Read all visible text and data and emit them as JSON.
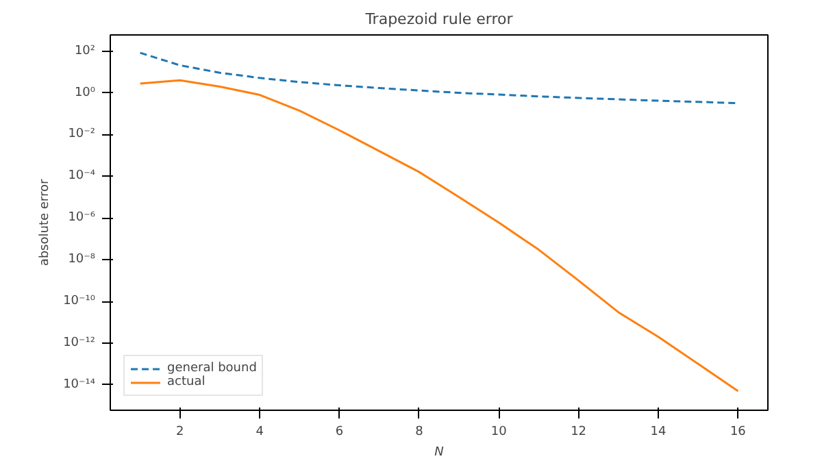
{
  "chart_data": {
    "type": "line",
    "title": "Trapezoid rule error",
    "xlabel": "N",
    "ylabel": "absolute error",
    "x": [
      1,
      2,
      3,
      4,
      5,
      6,
      7,
      8,
      9,
      10,
      11,
      12,
      13,
      14,
      15,
      16
    ],
    "series": [
      {
        "name": "general bound",
        "color": "#1f77b4",
        "line_style": "dashed",
        "values": [
          83,
          21,
          9.2,
          5.2,
          3.3,
          2.3,
          1.7,
          1.3,
          1.0,
          0.83,
          0.68,
          0.57,
          0.49,
          0.42,
          0.37,
          0.32
        ]
      },
      {
        "name": "actual",
        "color": "#ff7f0e",
        "line_style": "solid",
        "values": [
          2.8,
          4,
          2,
          0.8,
          0.14,
          0.016,
          0.0016,
          0.00016,
          1e-05,
          6e-07,
          3e-08,
          1e-09,
          3e-11,
          2e-12,
          1e-13,
          5e-15
        ]
      }
    ],
    "log": "y",
    "xlim": [
      0.25,
      16.75
    ],
    "ylim": [
      6e-16,
      600
    ],
    "xticks": [
      2,
      4,
      6,
      8,
      10,
      12,
      14,
      16
    ],
    "yticks": [
      {
        "value": 1e-14,
        "label": "10⁻¹⁴"
      },
      {
        "value": 1e-12,
        "label": "10⁻¹²"
      },
      {
        "value": 1e-10,
        "label": "10⁻¹⁰"
      },
      {
        "value": 1e-08,
        "label": "10⁻⁸"
      },
      {
        "value": 1e-06,
        "label": "10⁻⁶"
      },
      {
        "value": 0.0001,
        "label": "10⁻⁴"
      },
      {
        "value": 0.01,
        "label": "10⁻²"
      },
      {
        "value": 1,
        "label": "10⁰"
      },
      {
        "value": 100,
        "label": "10²"
      }
    ],
    "grid": false,
    "legend": "bottom left",
    "marker": "none"
  }
}
